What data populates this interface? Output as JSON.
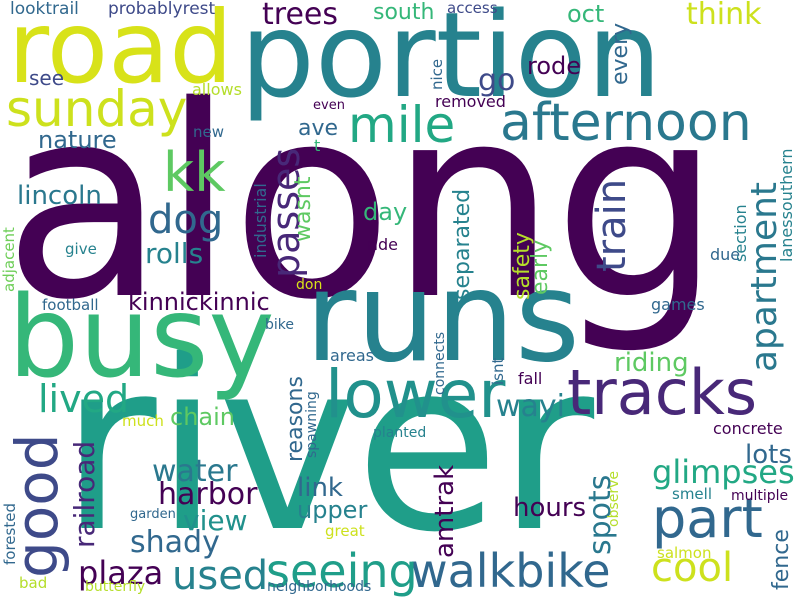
{
  "palette": {
    "purple_dark": "#440154",
    "indigo": "#482878",
    "blue": "#3e4a89",
    "slate": "#31688e",
    "teal_blue": "#26828e",
    "teal": "#1f9e89",
    "green_teal": "#35b779",
    "green": "#6ece58",
    "lime": "#b5de2b",
    "yellow": "#d8e219"
  },
  "words": [
    {
      "text": "along",
      "color": "#440154"
    },
    {
      "text": "river",
      "color": "#1f9e89"
    },
    {
      "text": "portion",
      "color": "#26828e"
    },
    {
      "text": "runs",
      "color": "#26828e"
    },
    {
      "text": "busy",
      "color": "#35b779"
    },
    {
      "text": "road",
      "color": "#d8e219"
    },
    {
      "text": "lower",
      "color": "#21918c"
    },
    {
      "text": "tracks",
      "color": "#482878"
    },
    {
      "text": "afternoon",
      "color": "#2a788e"
    },
    {
      "text": "good",
      "color": "#3e4a89"
    },
    {
      "text": "part",
      "color": "#31688e"
    },
    {
      "text": "walkbike",
      "color": "#31688e"
    },
    {
      "text": "sunday",
      "color": "#cde11d"
    },
    {
      "text": "mile",
      "color": "#22a884"
    },
    {
      "text": "seeing",
      "color": "#1f9e89"
    },
    {
      "text": "kk",
      "color": "#5ec962"
    },
    {
      "text": "cool",
      "color": "#cde11d"
    },
    {
      "text": "used",
      "color": "#26828e"
    },
    {
      "text": "lived",
      "color": "#22a884"
    },
    {
      "text": "dog",
      "color": "#31688e"
    },
    {
      "text": "apartment",
      "color": "#2a788e"
    },
    {
      "text": "train",
      "color": "#3e4a89"
    },
    {
      "text": "passes",
      "color": "#482878"
    },
    {
      "text": "glimpses",
      "color": "#22a884"
    },
    {
      "text": "harbor",
      "color": "#440154"
    },
    {
      "text": "water",
      "color": "#2a788e"
    },
    {
      "text": "view",
      "color": "#21918c"
    },
    {
      "text": "shady",
      "color": "#31688e"
    },
    {
      "text": "plaza",
      "color": "#440154"
    },
    {
      "text": "trees",
      "color": "#440154"
    },
    {
      "text": "think",
      "color": "#cde11d"
    },
    {
      "text": "wayi",
      "color": "#26828e"
    },
    {
      "text": "spots",
      "color": "#2a788e"
    },
    {
      "text": "rolls",
      "color": "#26828e"
    },
    {
      "text": "kinnickinnic",
      "color": "#440154"
    },
    {
      "text": "chain",
      "color": "#5ec962"
    },
    {
      "text": "go",
      "color": "#3e4a89"
    },
    {
      "text": "amtrak",
      "color": "#440154"
    },
    {
      "text": "railroad",
      "color": "#482878"
    },
    {
      "text": "lincoln",
      "color": "#2a788e"
    },
    {
      "text": "nature",
      "color": "#31688e"
    },
    {
      "text": "riding",
      "color": "#5ec962"
    },
    {
      "text": "link",
      "color": "#31688e"
    },
    {
      "text": "upper",
      "color": "#26828e"
    },
    {
      "text": "hours",
      "color": "#440154"
    },
    {
      "text": "reasons",
      "color": "#31688e"
    },
    {
      "text": "separated",
      "color": "#26828e"
    },
    {
      "text": "rode",
      "color": "#440154"
    },
    {
      "text": "safety",
      "color": "#b5de2b"
    },
    {
      "text": "early",
      "color": "#5ec962"
    },
    {
      "text": "lots",
      "color": "#31688e"
    },
    {
      "text": "fence",
      "color": "#31688e"
    },
    {
      "text": "oct",
      "color": "#35b779"
    },
    {
      "text": "day",
      "color": "#35b779"
    },
    {
      "text": "every",
      "color": "#31688e"
    },
    {
      "text": "south",
      "color": "#35b779"
    },
    {
      "text": "ave",
      "color": "#31688e"
    },
    {
      "text": "wasnt",
      "color": "#5ec962"
    },
    {
      "text": "industrial",
      "color": "#31688e"
    },
    {
      "text": "section",
      "color": "#26828e"
    },
    {
      "text": "lanessouthern",
      "color": "#26828e"
    },
    {
      "text": "see",
      "color": "#3e4a89"
    },
    {
      "text": "removed",
      "color": "#440154"
    },
    {
      "text": "probablyrest",
      "color": "#3e4a89"
    },
    {
      "text": "looktrail",
      "color": "#31688e"
    },
    {
      "text": "access",
      "color": "#3e4a89"
    },
    {
      "text": "nice",
      "color": "#31688e"
    },
    {
      "text": "allows",
      "color": "#b5de2b"
    },
    {
      "text": "even",
      "color": "#440154"
    },
    {
      "text": "new",
      "color": "#31688e"
    },
    {
      "text": "t",
      "color": "#35b779"
    },
    {
      "text": "give",
      "color": "#26828e"
    },
    {
      "text": "adjacent",
      "color": "#6ece58"
    },
    {
      "text": "football",
      "color": "#31688e"
    },
    {
      "text": "ride",
      "color": "#440154"
    },
    {
      "text": "due",
      "color": "#31688e"
    },
    {
      "text": "don",
      "color": "#d8e219"
    },
    {
      "text": "bike",
      "color": "#31688e"
    },
    {
      "text": "games",
      "color": "#31688e"
    },
    {
      "text": "areas",
      "color": "#31688e"
    },
    {
      "text": "connects",
      "color": "#31688e"
    },
    {
      "text": "isnt",
      "color": "#31688e"
    },
    {
      "text": "fall",
      "color": "#440154"
    },
    {
      "text": "much",
      "color": "#cde11d"
    },
    {
      "text": "spawning",
      "color": "#31688e"
    },
    {
      "text": "planted",
      "color": "#26828e"
    },
    {
      "text": "concrete",
      "color": "#440154"
    },
    {
      "text": "observe",
      "color": "#b5de2b"
    },
    {
      "text": "smell",
      "color": "#26828e"
    },
    {
      "text": "multiple",
      "color": "#440154"
    },
    {
      "text": "garden",
      "color": "#31688e"
    },
    {
      "text": "great",
      "color": "#cde11d"
    },
    {
      "text": "forested",
      "color": "#31688e"
    },
    {
      "text": "salmon",
      "color": "#cde11d"
    },
    {
      "text": "bad",
      "color": "#b5de2b"
    },
    {
      "text": "butterfly",
      "color": "#b5de2b"
    },
    {
      "text": "neighborhoods",
      "color": "#31688e"
    }
  ]
}
